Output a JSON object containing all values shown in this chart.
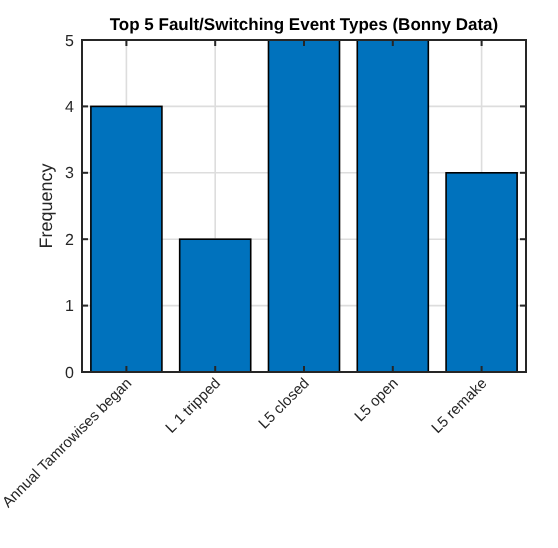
{
  "chart_data": {
    "type": "bar",
    "title": "Top 5 Fault/Switching Event Types (Bonny Data)",
    "ylabel": "Frequency",
    "categories": [
      "Annual Tamrowises began",
      "L 1 tripped",
      "L5 closed",
      "L5 open",
      "L5 remake"
    ],
    "values": [
      4,
      2,
      5,
      5,
      3
    ],
    "color": "#0072bd",
    "ylim": [
      0,
      5
    ],
    "yticks": [
      0,
      1,
      2,
      3,
      4,
      5
    ],
    "grid": true
  }
}
